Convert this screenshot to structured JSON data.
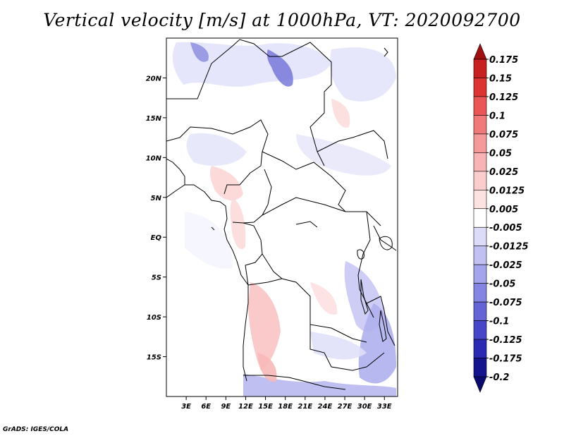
{
  "title": "Vertical velocity [m/s] at 1000hPa, VT: 2020092700",
  "credit": "GrADS: IGES/COLA",
  "map": {
    "lon_ticks": [
      "3E",
      "6E",
      "9E",
      "12E",
      "15E",
      "18E",
      "21E",
      "24E",
      "27E",
      "30E",
      "33E"
    ],
    "lat_ticks": [
      "20N",
      "15N",
      "10N",
      "5N",
      "EQ",
      "5S",
      "10S",
      "15S"
    ],
    "lon_range": [
      0,
      35
    ],
    "lat_range": [
      -20,
      25
    ]
  },
  "colorbar": {
    "labels": [
      "0.175",
      "0.15",
      "0.125",
      "0.1",
      "0.075",
      "0.05",
      "0.025",
      "0.0125",
      "0.005",
      "-0.005",
      "-0.0125",
      "-0.025",
      "-0.05",
      "-0.075",
      "-0.1",
      "-0.125",
      "-0.175",
      "-0.2"
    ],
    "colors": [
      "#a01010",
      "#c82020",
      "#dd3333",
      "#ea5555",
      "#f07a7a",
      "#f59a9a",
      "#f8b4b4",
      "#fbcccc",
      "#fde2e2",
      "#ffffff",
      "#dcdcf8",
      "#c0c0f2",
      "#a4a4ec",
      "#8484e2",
      "#6464d6",
      "#4646c8",
      "#2a2ab2",
      "#14148c",
      "#0a0a6e"
    ]
  }
}
